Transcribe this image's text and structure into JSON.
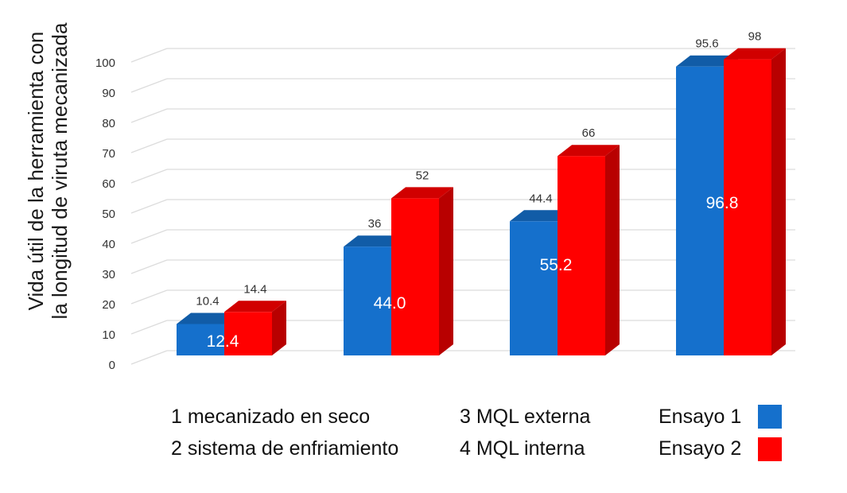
{
  "chart_data": {
    "type": "bar",
    "ylabel_lines": [
      "Vida útil de la herramienta con",
      "la longitud de viruta mecanizada"
    ],
    "ylim": [
      0,
      100
    ],
    "yticks": [
      0,
      10,
      20,
      30,
      40,
      50,
      60,
      70,
      80,
      90,
      100
    ],
    "grid": true,
    "series": [
      {
        "name": "Ensayo 1",
        "color": "#1570cc",
        "values": [
          10.4,
          36,
          44.4,
          95.6
        ]
      },
      {
        "name": "Ensayo 2",
        "color": "#ff0000",
        "values": [
          14.4,
          52,
          66,
          98
        ]
      }
    ],
    "annotations": [
      "12.4",
      "44.0",
      "55.2",
      "96.8"
    ]
  },
  "legend": {
    "categories": [
      "1 mecanizado en seco",
      "2 sistema de enfriamiento",
      "3 MQL externa",
      "4 MQL interna"
    ],
    "series": [
      "Ensayo 1",
      "Ensayo 2"
    ]
  }
}
